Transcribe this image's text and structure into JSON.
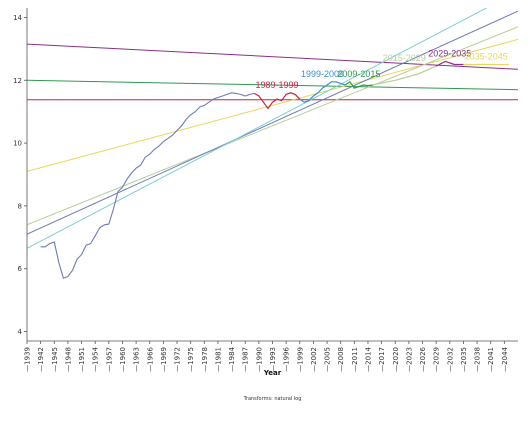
{
  "chart_data": {
    "type": "line",
    "xlabel": "Year",
    "ylabel": "",
    "footnote": "Transforms: natural log",
    "xlim": [
      1939,
      2047
    ],
    "ylim": [
      3.7,
      14.3
    ],
    "y_ticks": [
      4,
      6,
      8,
      10,
      12,
      14
    ],
    "x_ticks": [
      1939,
      1942,
      1945,
      1948,
      1951,
      1954,
      1957,
      1960,
      1963,
      1966,
      1969,
      1972,
      1975,
      1978,
      1981,
      1984,
      1987,
      1990,
      1993,
      1996,
      1999,
      2002,
      2005,
      2008,
      2011,
      2014,
      2017,
      2020,
      2023,
      2026,
      2029,
      2032,
      2035,
      2038,
      2041,
      2044
    ],
    "grid": false,
    "series_main": {
      "color": "#6f7bb8",
      "x": [
        1942,
        1943,
        1944,
        1945,
        1946,
        1947,
        1948,
        1949,
        1950,
        1951,
        1952,
        1953,
        1954,
        1955,
        1956,
        1957,
        1958,
        1959,
        1960,
        1961,
        1962,
        1963,
        1964,
        1965,
        1966,
        1967,
        1968,
        1969,
        1970,
        1971,
        1972,
        1973,
        1974,
        1975,
        1976,
        1977,
        1978,
        1979,
        1980,
        1981,
        1982,
        1983,
        1984,
        1985,
        1986,
        1987,
        1988,
        1989
      ],
      "y": [
        6.7,
        6.7,
        6.8,
        6.85,
        6.2,
        5.7,
        5.75,
        5.95,
        6.3,
        6.45,
        6.75,
        6.8,
        7.05,
        7.3,
        7.4,
        7.42,
        7.9,
        8.45,
        8.6,
        8.85,
        9.05,
        9.2,
        9.3,
        9.55,
        9.65,
        9.8,
        9.9,
        10.05,
        10.15,
        10.25,
        10.4,
        10.55,
        10.75,
        10.9,
        11.0,
        11.15,
        11.2,
        11.3,
        11.4,
        11.45,
        11.5,
        11.55,
        11.6,
        11.58,
        11.55,
        11.5,
        11.55,
        11.58
      ]
    },
    "segments": [
      {
        "name": "1989-1999",
        "color": "#cc2244",
        "x": [
          1989,
          1990,
          1991,
          1992,
          1993,
          1994,
          1995,
          1996,
          1997,
          1998,
          1999
        ],
        "y": [
          11.58,
          11.5,
          11.3,
          11.1,
          11.3,
          11.4,
          11.35,
          11.55,
          11.6,
          11.55,
          11.4
        ]
      },
      {
        "name": "1999-2009",
        "color": "#3a8fd0",
        "x": [
          1999,
          2000,
          2001,
          2002,
          2003,
          2004,
          2005,
          2006,
          2007,
          2008,
          2009
        ],
        "y": [
          11.4,
          11.3,
          11.35,
          11.5,
          11.6,
          11.75,
          11.85,
          11.95,
          11.95,
          11.9,
          11.85
        ]
      },
      {
        "name": "2009-2015",
        "color": "#2e9950",
        "x": [
          2009,
          2010,
          2011,
          2012,
          2013,
          2014,
          2015
        ],
        "y": [
          11.85,
          11.95,
          11.75,
          11.8,
          11.85,
          11.83,
          11.85
        ]
      },
      {
        "name": "2015-2029",
        "color": "#b7cf98",
        "x": [
          2015,
          2020,
          2025,
          2029
        ],
        "y": [
          11.85,
          12.0,
          12.2,
          12.45
        ]
      },
      {
        "name": "2029-2035",
        "color": "#8a2e88",
        "x": [
          2029,
          2031,
          2033,
          2035
        ],
        "y": [
          12.45,
          12.6,
          12.5,
          12.5
        ]
      },
      {
        "name": "2035-2045",
        "color": "#e6d85a",
        "x": [
          2035,
          2045
        ],
        "y": [
          12.5,
          12.5
        ]
      }
    ],
    "reference_lines": [
      {
        "color": "#cc2244",
        "x": [
          1939,
          2047
        ],
        "y": [
          11.38,
          11.38
        ]
      },
      {
        "color": "#2e9950",
        "x": [
          1939,
          2047
        ],
        "y": [
          12.0,
          11.7
        ]
      },
      {
        "color": "#8a2e88",
        "x": [
          1939,
          2047
        ],
        "y": [
          13.15,
          12.35
        ]
      },
      {
        "color": "#e6d85a",
        "x": [
          1939,
          2047
        ],
        "y": [
          9.1,
          13.3
        ]
      },
      {
        "color": "#b7cf98",
        "x": [
          1939,
          2047
        ],
        "y": [
          7.4,
          13.7
        ]
      },
      {
        "color": "#6f7bb8",
        "x": [
          1939,
          2047
        ],
        "y": [
          7.1,
          14.2
        ]
      },
      {
        "color": "#7dcdd8",
        "x": [
          1939,
          2044
        ],
        "y": [
          6.65,
          14.6
        ]
      }
    ]
  }
}
